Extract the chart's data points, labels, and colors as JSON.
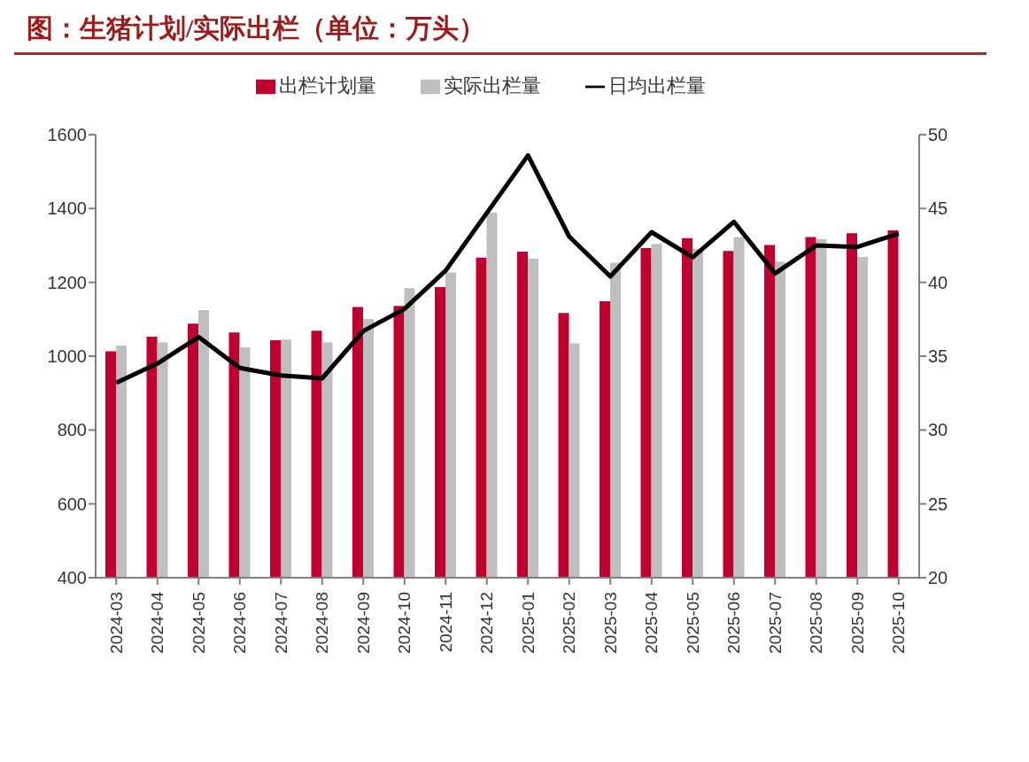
{
  "chart_data": {
    "type": "bar",
    "title": "图：生猪计划/实际出栏（单位：万头）",
    "categories": [
      "2024-03",
      "2024-04",
      "2024-05",
      "2024-06",
      "2024-07",
      "2024-08",
      "2024-09",
      "2024-10",
      "2024-11",
      "2024-12",
      "2025-01",
      "2025-02",
      "2025-03",
      "2025-04",
      "2025-05",
      "2025-06",
      "2025-07",
      "2025-08",
      "2025-09",
      "2025-10"
    ],
    "series": [
      {
        "name": "出栏计划量",
        "color": "#c0002f",
        "values": [
          1013,
          1053,
          1088,
          1064,
          1043,
          1069,
          1133,
          1136,
          1187,
          1267,
          1283,
          1117,
          1149,
          1293,
          1320,
          1285,
          1301,
          1323,
          1333,
          1341
        ]
      },
      {
        "name": "实际出栏量",
        "color": "#bfbfbf",
        "values": [
          1029,
          1037,
          1125,
          1024,
          1045,
          1037,
          1101,
          1184,
          1227,
          1389,
          1264,
          1035,
          1253,
          1304,
          1291,
          1323,
          1256,
          1317,
          1269,
          null
        ]
      },
      {
        "name": "日均出栏量",
        "type": "line",
        "axis": "y2",
        "color": "#000000",
        "values": [
          33.2,
          34.5,
          36.3,
          34.2,
          33.7,
          33.5,
          36.7,
          38.2,
          40.8,
          44.7,
          48.6,
          43.1,
          40.4,
          43.4,
          41.7,
          44.1,
          40.6,
          42.5,
          42.4,
          43.3
        ]
      }
    ],
    "ylim": [
      400,
      1600
    ],
    "yticks": [
      400,
      600,
      800,
      1000,
      1200,
      1400,
      1600
    ],
    "y2lim": [
      20,
      50
    ],
    "y2ticks": [
      20,
      25,
      30,
      35,
      40,
      45,
      50
    ],
    "legend": "top",
    "grid": false,
    "marker": "none",
    "line_style": "solid"
  }
}
